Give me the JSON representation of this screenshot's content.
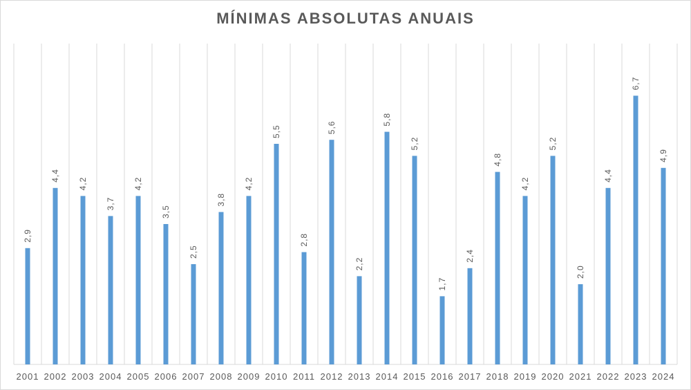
{
  "chart_data": {
    "type": "bar",
    "title": "MÍNIMAS  ABSOLUTAS  ANUAIS",
    "xlabel": "",
    "ylabel": "",
    "categories": [
      "2001",
      "2002",
      "2003",
      "2004",
      "2005",
      "2006",
      "2007",
      "2008",
      "2009",
      "2010",
      "2011",
      "2012",
      "2013",
      "2014",
      "2015",
      "2016",
      "2017",
      "2018",
      "2019",
      "2020",
      "2021",
      "2022",
      "2023",
      "2024"
    ],
    "values": [
      2.9,
      4.4,
      4.2,
      3.7,
      4.2,
      3.5,
      2.5,
      3.8,
      4.2,
      5.5,
      2.8,
      5.6,
      2.2,
      5.8,
      5.2,
      1.7,
      2.4,
      4.8,
      4.2,
      5.2,
      2.0,
      4.4,
      6.7,
      4.9
    ],
    "data_labels": [
      "2,9",
      "4,4",
      "4,2",
      "3,7",
      "4,2",
      "3,5",
      "2,5",
      "3,8",
      "4,2",
      "5,5",
      "2,8",
      "5,6",
      "2,2",
      "5,8",
      "5,2",
      "1,7",
      "2,4",
      "4,8",
      "4,2",
      "5,2",
      "2,0",
      "4,4",
      "6,7",
      "4,9"
    ],
    "ylim": [
      0,
      8
    ],
    "grid": "vertical",
    "legend": "none",
    "colors": {
      "bar": "#5b9bd5",
      "grid": "#d9d9d9",
      "text": "#595959"
    }
  }
}
